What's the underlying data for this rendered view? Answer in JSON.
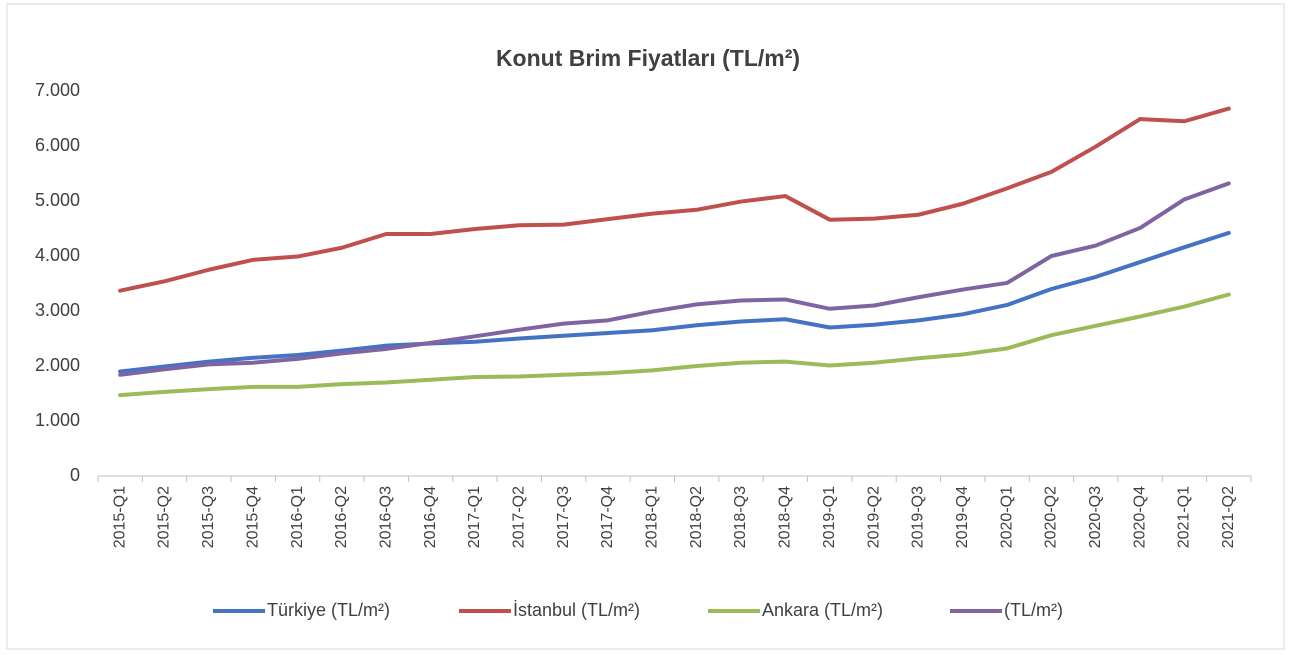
{
  "chart_data": {
    "type": "line",
    "title": "Konut Brim Fiyatları (TL/m²)",
    "categories": [
      "2015-Q1",
      "2015-Q2",
      "2015-Q3",
      "2015-Q4",
      "2016-Q1",
      "2016-Q2",
      "2016-Q3",
      "2016-Q4",
      "2017-Q1",
      "2017-Q2",
      "2017-Q3",
      "2017-Q4",
      "2018-Q1",
      "2018-Q2",
      "2018-Q3",
      "2018-Q4",
      "2019-Q1",
      "2019-Q2",
      "2019-Q3",
      "2019-Q4",
      "2020-Q1",
      "2020-Q2",
      "2020-Q3",
      "2020-Q4",
      "2021-Q1",
      "2021-Q2"
    ],
    "series": [
      {
        "name": "Türkiye (TL/m²)",
        "color": "#4472c4",
        "values": [
          1900,
          1990,
          2080,
          2150,
          2200,
          2280,
          2370,
          2410,
          2440,
          2500,
          2550,
          2600,
          2650,
          2740,
          2810,
          2850,
          2700,
          2750,
          2830,
          2940,
          3110,
          3400,
          3620,
          3890,
          4160,
          4420
        ]
      },
      {
        "name": "İstanbul (TL/m²)",
        "color": "#c0504d",
        "values": [
          3370,
          3540,
          3750,
          3930,
          3990,
          4150,
          4400,
          4400,
          4490,
          4560,
          4570,
          4670,
          4770,
          4840,
          4990,
          5090,
          4660,
          4680,
          4750,
          4950,
          5230,
          5530,
          5990,
          6490,
          6450,
          6680
        ]
      },
      {
        "name": "Ankara (TL/m²)",
        "color": "#9bbb59",
        "values": [
          1470,
          1530,
          1580,
          1620,
          1620,
          1670,
          1700,
          1750,
          1800,
          1810,
          1840,
          1870,
          1920,
          2000,
          2060,
          2080,
          2010,
          2060,
          2140,
          2210,
          2320,
          2560,
          2730,
          2900,
          3080,
          3300
        ]
      },
      {
        "name": "(TL/m²)",
        "color": "#8064a2",
        "values": [
          1840,
          1940,
          2030,
          2060,
          2130,
          2230,
          2310,
          2420,
          2540,
          2660,
          2770,
          2830,
          2990,
          3120,
          3190,
          3210,
          3040,
          3100,
          3250,
          3390,
          3510,
          4000,
          4190,
          4510,
          5030,
          5320
        ]
      }
    ],
    "ylim": [
      0,
      7000
    ],
    "yticks": [
      0,
      {
        "value": 1000,
        "label": "1.000"
      },
      {
        "value": 2000,
        "label": "2.000"
      },
      {
        "value": 3000,
        "label": "3.000"
      },
      {
        "value": 4000,
        "label": "4.000"
      },
      {
        "value": 5000,
        "label": "5.000"
      },
      {
        "value": 6000,
        "label": "6.000"
      },
      {
        "value": 7000,
        "label": "7.000"
      }
    ],
    "grid": false,
    "legend": "bottom"
  }
}
